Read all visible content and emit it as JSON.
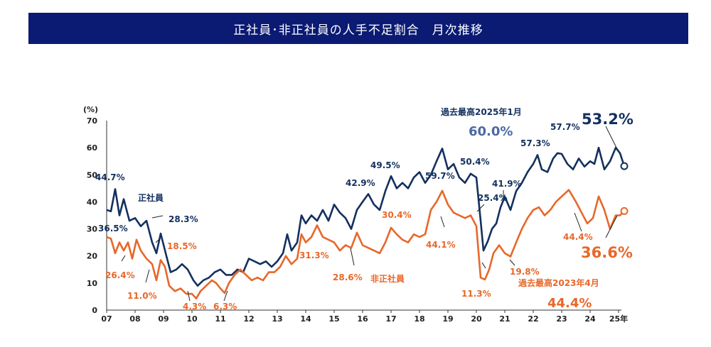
{
  "header": {
    "title": "正社員･非正社員の人手不足割合　月次推移"
  },
  "colors": {
    "title_bg": "#0b1a73",
    "regular": "#13305f",
    "nonregular": "#e8672a"
  },
  "chart_data": {
    "type": "line",
    "y_unit": "(%)",
    "ylim": [
      0,
      70
    ],
    "y_ticks": [
      "0",
      "10",
      "20",
      "30",
      "40",
      "50",
      "60",
      "70"
    ],
    "x_ticks": [
      "07",
      "08",
      "09",
      "10",
      "11",
      "12",
      "13",
      "14",
      "15",
      "16",
      "17",
      "18",
      "19",
      "20",
      "21",
      "22",
      "23",
      "24",
      "25年"
    ],
    "series": [
      {
        "name": "正社員",
        "values": [
          [
            2007.0,
            37
          ],
          [
            2007.15,
            36.5
          ],
          [
            2007.3,
            44.7
          ],
          [
            2007.45,
            35
          ],
          [
            2007.6,
            41
          ],
          [
            2007.8,
            33
          ],
          [
            2008.0,
            34
          ],
          [
            2008.2,
            31
          ],
          [
            2008.4,
            33
          ],
          [
            2008.6,
            25
          ],
          [
            2008.75,
            21
          ],
          [
            2008.9,
            28.3
          ],
          [
            2009.1,
            20
          ],
          [
            2009.25,
            14
          ],
          [
            2009.45,
            15
          ],
          [
            2009.65,
            17
          ],
          [
            2009.85,
            15
          ],
          [
            2010.05,
            11
          ],
          [
            2010.2,
            9
          ],
          [
            2010.4,
            11
          ],
          [
            2010.6,
            12
          ],
          [
            2010.8,
            14
          ],
          [
            2011.0,
            15
          ],
          [
            2011.2,
            13
          ],
          [
            2011.4,
            13
          ],
          [
            2011.6,
            15
          ],
          [
            2011.8,
            14
          ],
          [
            2012.0,
            19
          ],
          [
            2012.2,
            18
          ],
          [
            2012.4,
            17
          ],
          [
            2012.6,
            18
          ],
          [
            2012.8,
            16
          ],
          [
            2013.0,
            18
          ],
          [
            2013.2,
            21
          ],
          [
            2013.35,
            28
          ],
          [
            2013.5,
            22
          ],
          [
            2013.7,
            25
          ],
          [
            2013.85,
            35
          ],
          [
            2014.0,
            32
          ],
          [
            2014.2,
            35
          ],
          [
            2014.4,
            33
          ],
          [
            2014.6,
            37
          ],
          [
            2014.8,
            33
          ],
          [
            2015.0,
            39
          ],
          [
            2015.2,
            36
          ],
          [
            2015.4,
            34
          ],
          [
            2015.6,
            30
          ],
          [
            2015.8,
            37
          ],
          [
            2016.0,
            40
          ],
          [
            2016.2,
            42.9
          ],
          [
            2016.4,
            39
          ],
          [
            2016.6,
            37
          ],
          [
            2016.8,
            44
          ],
          [
            2017.0,
            49.5
          ],
          [
            2017.2,
            45
          ],
          [
            2017.4,
            47
          ],
          [
            2017.6,
            45
          ],
          [
            2017.8,
            49
          ],
          [
            2018.0,
            51
          ],
          [
            2018.2,
            47
          ],
          [
            2018.4,
            50
          ],
          [
            2018.6,
            55
          ],
          [
            2018.8,
            59.7
          ],
          [
            2019.0,
            52
          ],
          [
            2019.2,
            54
          ],
          [
            2019.4,
            49
          ],
          [
            2019.6,
            47
          ],
          [
            2019.8,
            50.4
          ],
          [
            2020.0,
            49
          ],
          [
            2020.15,
            33
          ],
          [
            2020.25,
            22
          ],
          [
            2020.4,
            25.4
          ],
          [
            2020.55,
            30
          ],
          [
            2020.7,
            32
          ],
          [
            2020.85,
            38
          ],
          [
            2021.0,
            41.9
          ],
          [
            2021.2,
            37
          ],
          [
            2021.4,
            44
          ],
          [
            2021.6,
            47
          ],
          [
            2021.8,
            51
          ],
          [
            2022.0,
            54
          ],
          [
            2022.15,
            57.3
          ],
          [
            2022.3,
            52
          ],
          [
            2022.5,
            51
          ],
          [
            2022.7,
            56
          ],
          [
            2022.85,
            58
          ],
          [
            2023.0,
            57.7
          ],
          [
            2023.2,
            54
          ],
          [
            2023.4,
            52
          ],
          [
            2023.6,
            56
          ],
          [
            2023.8,
            53
          ],
          [
            2024.0,
            55
          ],
          [
            2024.15,
            54
          ],
          [
            2024.3,
            60
          ],
          [
            2024.5,
            52
          ],
          [
            2024.7,
            55
          ],
          [
            2024.9,
            60
          ],
          [
            2025.05,
            58
          ],
          [
            2025.2,
            53.2
          ]
        ]
      },
      {
        "name": "非正社員",
        "values": [
          [
            2007.0,
            27
          ],
          [
            2007.15,
            26.4
          ],
          [
            2007.3,
            21
          ],
          [
            2007.45,
            25
          ],
          [
            2007.6,
            22
          ],
          [
            2007.75,
            25
          ],
          [
            2007.9,
            19
          ],
          [
            2008.05,
            26
          ],
          [
            2008.2,
            22
          ],
          [
            2008.4,
            19
          ],
          [
            2008.6,
            17
          ],
          [
            2008.75,
            11.0
          ],
          [
            2008.9,
            18.5
          ],
          [
            2009.05,
            16
          ],
          [
            2009.2,
            9
          ],
          [
            2009.4,
            7
          ],
          [
            2009.6,
            8
          ],
          [
            2009.8,
            6
          ],
          [
            2010.0,
            6
          ],
          [
            2010.15,
            4.3
          ],
          [
            2010.3,
            7
          ],
          [
            2010.5,
            9
          ],
          [
            2010.7,
            11
          ],
          [
            2010.85,
            10
          ],
          [
            2011.0,
            8
          ],
          [
            2011.15,
            6.3
          ],
          [
            2011.3,
            10
          ],
          [
            2011.5,
            13
          ],
          [
            2011.7,
            15
          ],
          [
            2011.9,
            13
          ],
          [
            2012.1,
            11
          ],
          [
            2012.3,
            12
          ],
          [
            2012.5,
            11
          ],
          [
            2012.7,
            14
          ],
          [
            2012.9,
            14
          ],
          [
            2013.1,
            16
          ],
          [
            2013.3,
            20
          ],
          [
            2013.5,
            17
          ],
          [
            2013.7,
            19
          ],
          [
            2013.85,
            28
          ],
          [
            2014.0,
            25
          ],
          [
            2014.2,
            27
          ],
          [
            2014.4,
            31.3
          ],
          [
            2014.6,
            27
          ],
          [
            2014.8,
            26
          ],
          [
            2015.0,
            25
          ],
          [
            2015.2,
            22
          ],
          [
            2015.4,
            24
          ],
          [
            2015.6,
            23
          ],
          [
            2015.8,
            28.6
          ],
          [
            2016.0,
            24
          ],
          [
            2016.2,
            23
          ],
          [
            2016.4,
            22
          ],
          [
            2016.6,
            21
          ],
          [
            2016.8,
            25
          ],
          [
            2017.0,
            30.4
          ],
          [
            2017.2,
            28
          ],
          [
            2017.4,
            26
          ],
          [
            2017.6,
            25
          ],
          [
            2017.8,
            28
          ],
          [
            2018.0,
            27
          ],
          [
            2018.2,
            28
          ],
          [
            2018.4,
            37
          ],
          [
            2018.6,
            40
          ],
          [
            2018.8,
            44.1
          ],
          [
            2019.0,
            39
          ],
          [
            2019.2,
            36
          ],
          [
            2019.4,
            35
          ],
          [
            2019.6,
            34
          ],
          [
            2019.8,
            35
          ],
          [
            2020.0,
            31
          ],
          [
            2020.15,
            12
          ],
          [
            2020.3,
            11.3
          ],
          [
            2020.45,
            15
          ],
          [
            2020.6,
            21
          ],
          [
            2020.8,
            24
          ],
          [
            2021.0,
            21
          ],
          [
            2021.2,
            19.8
          ],
          [
            2021.4,
            25
          ],
          [
            2021.6,
            30
          ],
          [
            2021.8,
            34
          ],
          [
            2022.0,
            37
          ],
          [
            2022.2,
            38
          ],
          [
            2022.4,
            35
          ],
          [
            2022.6,
            37
          ],
          [
            2022.8,
            40
          ],
          [
            2023.0,
            42
          ],
          [
            2023.25,
            44.4
          ],
          [
            2023.5,
            40
          ],
          [
            2023.7,
            36
          ],
          [
            2023.9,
            32
          ],
          [
            2024.1,
            34
          ],
          [
            2024.3,
            42
          ],
          [
            2024.5,
            37
          ],
          [
            2024.7,
            30
          ],
          [
            2024.9,
            35
          ],
          [
            2025.05,
            35
          ],
          [
            2025.2,
            36.6
          ]
        ]
      }
    ],
    "annotations": {
      "series_label_regular": "正社員",
      "series_label_nonregular": "非正社員",
      "record_regular_title": "過去最高2025年1月",
      "record_regular_value": "60.0%",
      "record_nonregular_title": "過去最高2023年4月",
      "record_nonregular_value": "44.4%",
      "latest_regular": "53.2%",
      "latest_nonregular": "36.6%",
      "regular_points": [
        "44.7%",
        "36.5%",
        "28.3%",
        "42.9%",
        "49.5%",
        "59.7%",
        "50.4%",
        "25.4%",
        "41.9%",
        "57.3%",
        "57.7%"
      ],
      "nonregular_points": [
        "26.4%",
        "11.0%",
        "18.5%",
        "4.3%",
        "6.3%",
        "31.3%",
        "28.6%",
        "30.4%",
        "44.1%",
        "11.3%",
        "19.8%",
        "44.4%"
      ]
    }
  }
}
